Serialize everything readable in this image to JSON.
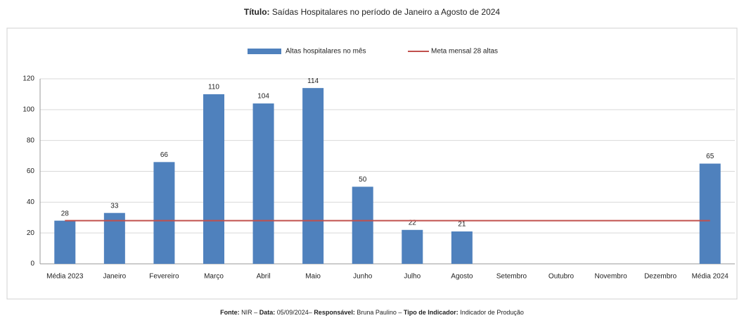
{
  "chart_data": {
    "type": "bar",
    "title_label": "Título:",
    "title": "Saídas Hospitalares no período de Janeiro a Agosto de 2024",
    "categories": [
      "Média 2023",
      "Janeiro",
      "Fevereiro",
      "Março",
      "Abril",
      "Maio",
      "Junho",
      "Julho",
      "Agosto",
      "Setembro",
      "Outubro",
      "Novembro",
      "Dezembro",
      "Média 2024"
    ],
    "series": [
      {
        "name": "Altas hospitalares no mês",
        "type": "bar",
        "color": "#4f81bd",
        "values": [
          28,
          33,
          66,
          110,
          104,
          114,
          50,
          22,
          21,
          null,
          null,
          null,
          null,
          65
        ]
      },
      {
        "name": "Meta mensal 28 altas",
        "type": "line",
        "color": "#c0504d",
        "values": [
          28,
          28,
          28,
          28,
          28,
          28,
          28,
          28,
          28,
          28,
          28,
          28,
          28,
          28
        ]
      }
    ],
    "ylim": [
      0,
      120
    ],
    "yticks": [
      0,
      20,
      40,
      60,
      80,
      100,
      120
    ],
    "grid": true,
    "legend": "top"
  },
  "footer": [
    {
      "label": "Fonte:",
      "text": "NIR –"
    },
    {
      "label": "Data:",
      "text": "05/09/2024–"
    },
    {
      "label": "Responsável:",
      "text": "Bruna Paulino –"
    },
    {
      "label": "Tipo de Indicador:",
      "text": "Indicador de Produção"
    }
  ]
}
